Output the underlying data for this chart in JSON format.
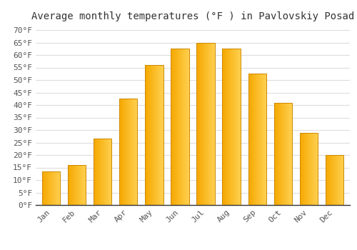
{
  "title": "Average monthly temperatures (°F ) in Pavlovskiy Posad",
  "months": [
    "Jan",
    "Feb",
    "Mar",
    "Apr",
    "May",
    "Jun",
    "Jul",
    "Aug",
    "Sep",
    "Oct",
    "Nov",
    "Dec"
  ],
  "values": [
    13.5,
    16.0,
    26.5,
    42.5,
    56.0,
    62.5,
    65.0,
    62.5,
    52.5,
    41.0,
    29.0,
    20.0
  ],
  "bar_color_left": "#F5A800",
  "bar_color_right": "#FFD050",
  "bar_edge_color": "#CC8800",
  "background_color": "#ffffff",
  "grid_color": "#dddddd",
  "text_color": "#555555",
  "title_color": "#333333",
  "ylim": [
    0,
    72
  ],
  "yticks": [
    0,
    5,
    10,
    15,
    20,
    25,
    30,
    35,
    40,
    45,
    50,
    55,
    60,
    65,
    70
  ],
  "title_fontsize": 10,
  "tick_fontsize": 8,
  "font_family": "monospace",
  "bar_width": 0.7
}
